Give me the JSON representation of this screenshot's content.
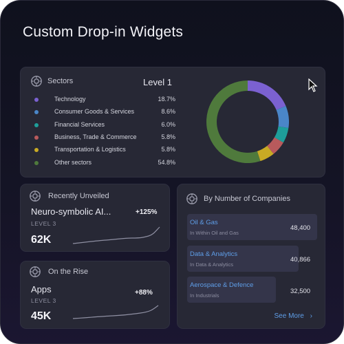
{
  "page": {
    "title": "Custom Drop-in Widgets"
  },
  "sectors": {
    "header": "Sectors",
    "level": "Level 1",
    "items": [
      {
        "name": "Technology",
        "pct": "18.7%",
        "value": 18.7,
        "color": "#7b61d1"
      },
      {
        "name": "Consumer Goods & Services",
        "pct": "8.6%",
        "value": 8.6,
        "color": "#4a86c8"
      },
      {
        "name": "Financial Services",
        "pct": "6.0%",
        "value": 6.0,
        "color": "#1e9e9a"
      },
      {
        "name": "Business, Trade & Commerce",
        "pct": "5.8%",
        "value": 5.8,
        "color": "#b85a5c"
      },
      {
        "name": "Transportation & Logistics",
        "pct": "5.8%",
        "value": 5.8,
        "color": "#c8aa24"
      },
      {
        "name": "Other sectors",
        "pct": "54.8%",
        "value": 54.8,
        "color": "#4f7a3c"
      }
    ]
  },
  "recently_unveiled": {
    "header": "Recently Unveiled",
    "item": "Neuro-symbolic AI...",
    "level": "LEVEL 3",
    "value": "62K",
    "delta": "+125%"
  },
  "on_the_rise": {
    "header": "On the Rise",
    "item": "Apps",
    "level": "LEVEL 3",
    "value": "45K",
    "delta": "+88%"
  },
  "companies": {
    "header": "By Number of Companies",
    "rows": [
      {
        "name": "Oil & Gas",
        "sub": "In Within Oil and Gas",
        "value": "48,400"
      },
      {
        "name": "Data & Analytics",
        "sub": "In Data & Analytics",
        "value": "40,866"
      },
      {
        "name": "Aerospace & Defence",
        "sub": "In Industrials",
        "value": "32,500"
      }
    ],
    "see_more": "See More",
    "chevron_icon": "chevron-right-icon"
  },
  "icons": {
    "card_icon": "settings-icon",
    "cursor": "mouse-pointer-icon"
  }
}
